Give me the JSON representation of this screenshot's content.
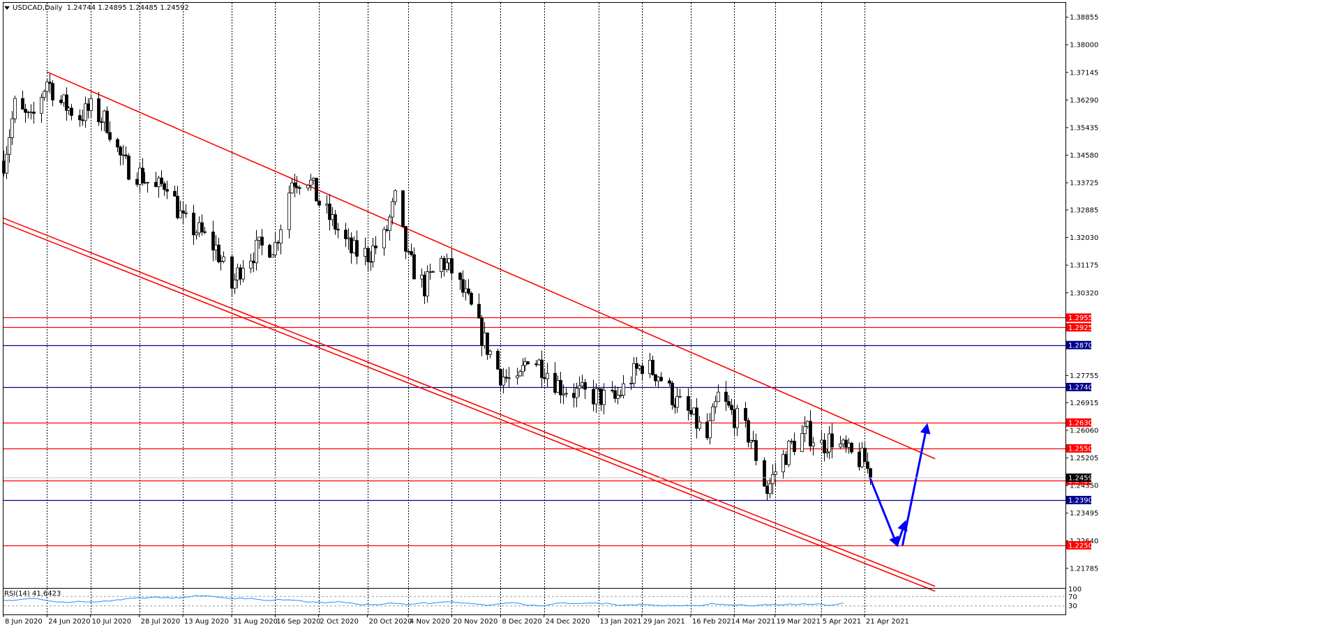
{
  "header": {
    "symbol": "USDCAD,Daily",
    "ohlc": "1.24744 1.24895 1.24485 1.24592"
  },
  "rsi_label": "RSI(14) 41.6423",
  "rsi_axis": [
    "100",
    "70",
    "30"
  ],
  "colors": {
    "channel": "#ff0000",
    "support": "#ff0000",
    "resistance_blue": "#00008b",
    "arrow": "#0000ff",
    "rsi_line": "#1e90ff",
    "bull_body": "#ffffff",
    "bear_body": "#000000"
  },
  "chart_data": {
    "type": "candlestick",
    "ylim": [
      1.212,
      1.393
    ],
    "price_ticks": [
      "1.38855",
      "1.38000",
      "1.37145",
      "1.36290",
      "1.35435",
      "1.34580",
      "1.33725",
      "1.32885",
      "1.32030",
      "1.31175",
      "1.30320",
      "1.27755",
      "1.26915",
      "1.26060",
      "1.25205",
      "1.24350",
      "1.23495",
      "1.22640",
      "1.21785"
    ],
    "date_ticks": [
      "8 Jun 2020",
      "24 Jun 2020",
      "10 Jul 2020",
      "28 Jul 2020",
      "13 Aug 2020",
      "31 Aug 2020",
      "16 Sep 2020",
      "2 Oct 2020",
      "20 Oct 2020",
      "4 Nov 2020",
      "20 Nov 2020",
      "8 Dec 2020",
      "24 Dec 2020",
      "13 Jan 2021",
      "29 Jan 2021",
      "16 Feb 2021",
      "4 Mar 2021",
      "19 Mar 2021",
      "5 Apr 2021",
      "21 Apr 2021"
    ],
    "horizontal_levels": [
      {
        "label": "1.29550",
        "value": 1.2955,
        "color": "red"
      },
      {
        "label": "1.29250",
        "value": 1.2925,
        "color": "red"
      },
      {
        "label": "1.28700",
        "value": 1.287,
        "color": "blue"
      },
      {
        "label": "1.27400",
        "value": 1.274,
        "color": "blue"
      },
      {
        "label": "1.26300",
        "value": 1.263,
        "color": "red"
      },
      {
        "label": "1.25500",
        "value": 1.255,
        "color": "red"
      },
      {
        "label": "1.24500",
        "value": 1.245,
        "color": "red"
      },
      {
        "label": "1.23900",
        "value": 1.239,
        "color": "blue"
      },
      {
        "label": "1.22500",
        "value": 1.225,
        "color": "red"
      }
    ],
    "current_price": 1.24592,
    "price_path": [
      [
        "8 Jun 2020",
        1.344
      ],
      [
        "12 Jun 2020",
        1.361
      ],
      [
        "18 Jun 2020",
        1.356
      ],
      [
        "24 Jun 2020",
        1.369
      ],
      [
        "29 Jun 2020",
        1.362
      ],
      [
        "6 Jul 2020",
        1.358
      ],
      [
        "10 Jul 2020",
        1.36
      ],
      [
        "16 Jul 2020",
        1.356
      ],
      [
        "22 Jul 2020",
        1.343
      ],
      [
        "28 Jul 2020",
        1.34
      ],
      [
        "3 Aug 2020",
        1.335
      ],
      [
        "7 Aug 2020",
        1.338
      ],
      [
        "13 Aug 2020",
        1.325
      ],
      [
        "19 Aug 2020",
        1.322
      ],
      [
        "25 Aug 2020",
        1.317
      ],
      [
        "31 Aug 2020",
        1.305
      ],
      [
        "4 Sep 2020",
        1.313
      ],
      [
        "10 Sep 2020",
        1.317
      ],
      [
        "16 Sep 2020",
        1.318
      ],
      [
        "22 Sep 2020",
        1.338
      ],
      [
        "28 Sep 2020",
        1.339
      ],
      [
        "2 Oct 2020",
        1.331
      ],
      [
        "8 Oct 2020",
        1.324
      ],
      [
        "14 Oct 2020",
        1.316
      ],
      [
        "20 Oct 2020",
        1.315
      ],
      [
        "26 Oct 2020",
        1.32
      ],
      [
        "30 Oct 2020",
        1.332
      ],
      [
        "4 Nov 2020",
        1.313
      ],
      [
        "10 Nov 2020",
        1.305
      ],
      [
        "16 Nov 2020",
        1.313
      ],
      [
        "20 Nov 2020",
        1.31
      ],
      [
        "26 Nov 2020",
        1.3
      ],
      [
        "2 Dec 2020",
        1.288
      ],
      [
        "8 Dec 2020",
        1.278
      ],
      [
        "14 Dec 2020",
        1.274
      ],
      [
        "18 Dec 2020",
        1.284
      ],
      [
        "24 Dec 2020",
        1.28
      ],
      [
        "30 Dec 2020",
        1.274
      ],
      [
        "6 Jan 2021",
        1.272
      ],
      [
        "13 Jan 2021",
        1.271
      ],
      [
        "19 Jan 2021",
        1.27
      ],
      [
        "25 Jan 2021",
        1.277
      ],
      [
        "29 Jan 2021",
        1.281
      ],
      [
        "4 Feb 2021",
        1.278
      ],
      [
        "10 Feb 2021",
        1.27
      ],
      [
        "16 Feb 2021",
        1.265
      ],
      [
        "22 Feb 2021",
        1.258
      ],
      [
        "26 Feb 2021",
        1.271
      ],
      [
        "4 Mar 2021",
        1.265
      ],
      [
        "10 Mar 2021",
        1.258
      ],
      [
        "16 Mar 2021",
        1.242
      ],
      [
        "19 Mar 2021",
        1.248
      ],
      [
        "25 Mar 2021",
        1.256
      ],
      [
        "31 Mar 2021",
        1.26
      ],
      [
        "5 Apr 2021",
        1.256
      ],
      [
        "9 Apr 2021",
        1.258
      ],
      [
        "15 Apr 2021",
        1.253
      ],
      [
        "21 Apr 2021",
        1.251
      ],
      [
        "23 Apr 2021",
        1.2459
      ]
    ],
    "channel_upper": [
      [
        "24 Jun 2020",
        1.3716
      ],
      [
        "17 May 2021",
        1.2518
      ]
    ],
    "channel_lower": [
      [
        "8 Jun 2020",
        1.3263
      ],
      [
        "17 May 2021",
        1.2123
      ]
    ],
    "projection_arrows": [
      [
        [
          "23 Apr 2021",
          1.2459
        ],
        [
          "3 May 2021",
          1.225
        ]
      ],
      [
        [
          "3 May 2021",
          1.225
        ],
        [
          "6 May 2021",
          1.2322
        ]
      ],
      [
        [
          "5 May 2021",
          1.225
        ],
        [
          "14 May 2021",
          1.2622
        ]
      ]
    ]
  }
}
